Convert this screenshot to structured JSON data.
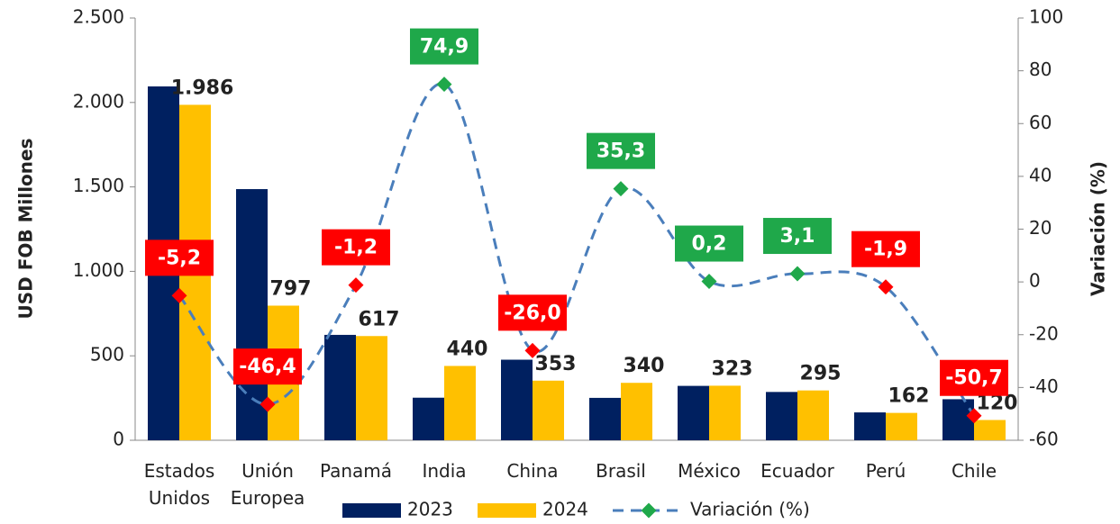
{
  "chart_data": {
    "type": "bar_line",
    "categories": [
      "Estados Unidos",
      "Unión Europea",
      "Panamá",
      "India",
      "China",
      "Brasil",
      "México",
      "Ecuador",
      "Perú",
      "Chile"
    ],
    "y_label": "USD FOB Millones",
    "y2_label": "Variación (%)",
    "series": [
      {
        "name": "2023",
        "type": "bar",
        "color": "#002060",
        "values": [
          2095,
          1487,
          624,
          252,
          477,
          251,
          322,
          286,
          165,
          243
        ]
      },
      {
        "name": "2024",
        "type": "bar",
        "color": "#ffc000",
        "values": [
          1986,
          797,
          617,
          440,
          353,
          340,
          323,
          295,
          162,
          120
        ],
        "value_labels": [
          "1.986",
          "797",
          "617",
          "440",
          "353",
          "340",
          "323",
          "295",
          "162",
          "120"
        ]
      },
      {
        "name": "Variación (%)",
        "type": "line",
        "axis": "y2",
        "color": "#4a7ebb",
        "dashed": true,
        "values": [
          -5.2,
          -46.4,
          -1.2,
          74.9,
          -26.0,
          35.3,
          0.2,
          3.1,
          -1.9,
          -50.7
        ],
        "value_labels": [
          "-5,2",
          "-46,4",
          "-1,2",
          "74,9",
          "-26,0",
          "35,3",
          "0,2",
          "3,1",
          "-1,9",
          "-50,7"
        ],
        "positive_color": "#1fa84a",
        "negative_color": "#ff0000"
      }
    ],
    "ylim": [
      0,
      2500
    ],
    "yticks": [
      0,
      500,
      {
        "value": 1000,
        "label": "1.000"
      },
      {
        "value": 1500,
        "label": "1.500"
      },
      {
        "value": 2000,
        "label": "2.000"
      },
      {
        "value": 2500,
        "label": "2.500"
      }
    ],
    "y2lim": [
      -60,
      100
    ],
    "y2ticks": [
      -60,
      -40,
      -20,
      0,
      20,
      40,
      60,
      80,
      100
    ],
    "legend": "bottom"
  }
}
